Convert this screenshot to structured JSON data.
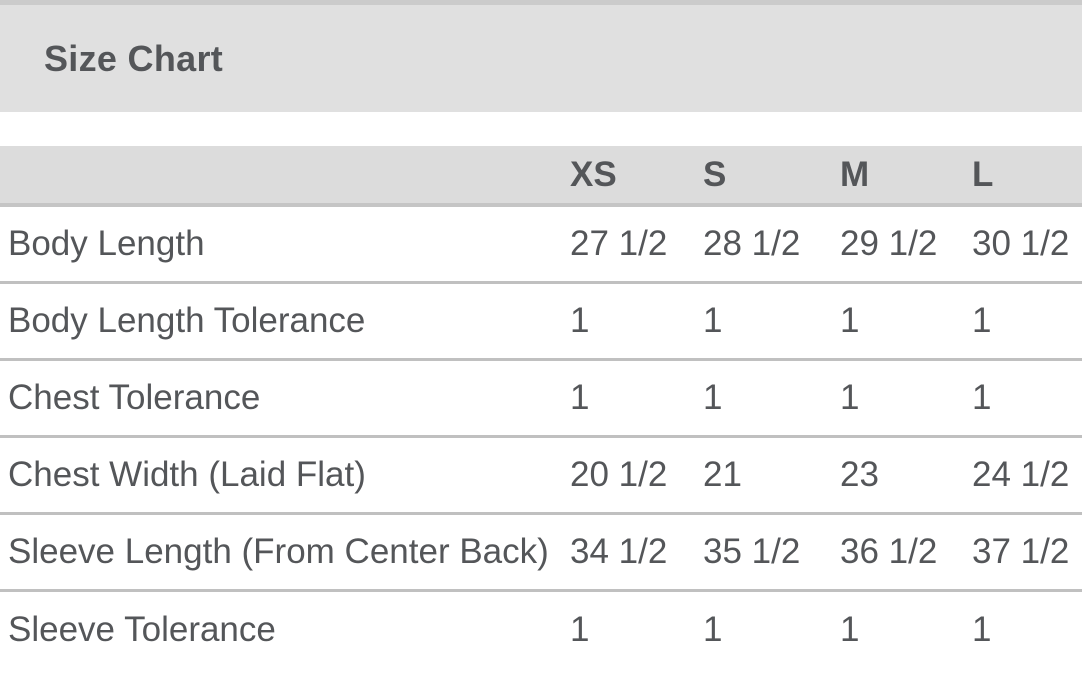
{
  "title": "Size Chart",
  "table": {
    "columns": [
      "",
      "XS",
      "S",
      "M",
      "L"
    ],
    "rows": [
      {
        "label": "Body Length",
        "values": [
          "27 1/2",
          "28 1/2",
          "29 1/2",
          "30 1/2"
        ]
      },
      {
        "label": "Body Length Tolerance",
        "values": [
          "1",
          "1",
          "1",
          "1"
        ]
      },
      {
        "label": "Chest Tolerance",
        "values": [
          "1",
          "1",
          "1",
          "1"
        ]
      },
      {
        "label": "Chest Width (Laid Flat)",
        "values": [
          "20 1/2",
          "21",
          "23",
          "24 1/2"
        ]
      },
      {
        "label": "Sleeve Length (From Center Back)",
        "values": [
          "34 1/2",
          "35 1/2",
          "36 1/2",
          "37 1/2"
        ]
      },
      {
        "label": "Sleeve Tolerance",
        "values": [
          "1",
          "1",
          "1",
          "1"
        ]
      }
    ]
  },
  "colors": {
    "top_strip": "#cbcbcb",
    "banner_background": "#e0e0e0",
    "header_row_background": "#dcdcdc",
    "header_bottom_border": "#c5c5c5",
    "row_separator": "#c0c0c0",
    "text": "#545659",
    "page_background": "#ffffff"
  }
}
